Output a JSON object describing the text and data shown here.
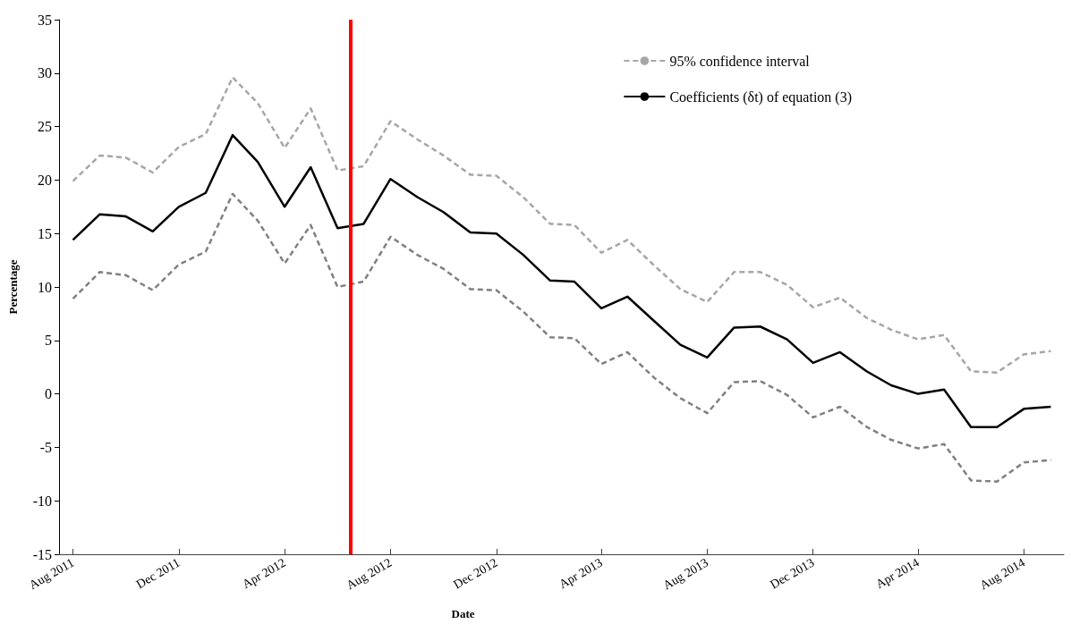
{
  "chart_data": {
    "type": "line",
    "xlabel": "Date",
    "ylabel": "Percentage",
    "x": [
      "2011-08",
      "2011-09",
      "2011-10",
      "2011-11",
      "2011-12",
      "2012-01",
      "2012-02",
      "2012-03",
      "2012-04",
      "2012-05",
      "2012-06",
      "2012-07",
      "2012-08",
      "2012-09",
      "2012-10",
      "2012-11",
      "2012-12",
      "2013-01",
      "2013-02",
      "2013-03",
      "2013-04",
      "2013-05",
      "2013-06",
      "2013-07",
      "2013-08",
      "2013-09",
      "2013-10",
      "2013-11",
      "2013-12",
      "2014-01",
      "2014-02",
      "2014-03",
      "2014-04",
      "2014-05",
      "2014-06",
      "2014-07",
      "2014-08",
      "2014-09"
    ],
    "series": [
      {
        "name": "95% confidence interval",
        "color": "#a6a6a6",
        "line_style": "dashed",
        "values": [
          19.9,
          22.3,
          22.1,
          20.7,
          23.1,
          24.3,
          29.6,
          27.2,
          23.0,
          26.7,
          20.9,
          21.3,
          25.5,
          23.8,
          22.3,
          20.5,
          20.4,
          18.4,
          15.9,
          15.8,
          13.2,
          14.4,
          12.0,
          9.8,
          8.6,
          11.4,
          11.4,
          10.2,
          8.1,
          9.0,
          7.1,
          6.0,
          5.1,
          5.5,
          2.1,
          2.0,
          3.7,
          4.0
        ]
      },
      {
        "name": "Coefficients (δt) of equation (3)",
        "color": "#000000",
        "line_style": "solid",
        "values": [
          14.4,
          16.8,
          16.6,
          15.2,
          17.5,
          18.8,
          24.2,
          21.7,
          17.5,
          21.2,
          15.5,
          15.9,
          20.1,
          18.4,
          17.0,
          15.1,
          15.0,
          13.0,
          10.6,
          10.5,
          8.0,
          9.1,
          6.8,
          4.6,
          3.4,
          6.2,
          6.3,
          5.1,
          2.9,
          3.9,
          2.1,
          0.8,
          0.0,
          0.4,
          -3.1,
          -3.1,
          -1.4,
          -1.2
        ]
      },
      {
        "color": "#808080",
        "line_style": "dashed",
        "values": [
          8.9,
          11.4,
          11.1,
          9.7,
          12.1,
          13.3,
          18.7,
          16.2,
          12.2,
          15.8,
          10.0,
          10.5,
          14.7,
          13.0,
          11.7,
          9.8,
          9.7,
          7.7,
          5.3,
          5.2,
          2.8,
          3.9,
          1.5,
          -0.4,
          -1.8,
          1.1,
          1.2,
          -0.1,
          -2.2,
          -1.2,
          -3.1,
          -4.3,
          -5.1,
          -4.7,
          -8.1,
          -8.2,
          -6.4,
          -6.2
        ]
      }
    ],
    "xlim": [
      "2011-07-16",
      "2014-09-16"
    ],
    "xticks": [
      {
        "value": "2011-08",
        "label": "Aug 2011"
      },
      {
        "value": "2011-12",
        "label": "Dec 2011"
      },
      {
        "value": "2012-04",
        "label": "Apr 2012"
      },
      {
        "value": "2012-08",
        "label": "Aug 2012"
      },
      {
        "value": "2012-12",
        "label": "Dec 2012"
      },
      {
        "value": "2013-04",
        "label": "Apr 2013"
      },
      {
        "value": "2013-08",
        "label": "Aug 2013"
      },
      {
        "value": "2013-12",
        "label": "Dec 2013"
      },
      {
        "value": "2014-04",
        "label": "Apr 2014"
      },
      {
        "value": "2014-08",
        "label": "Aug 2014"
      }
    ],
    "ylim": [
      -15,
      35
    ],
    "yticks": [
      -15,
      -10,
      -5,
      0,
      5,
      10,
      15,
      20,
      25,
      30,
      35
    ],
    "ref_lines": [
      {
        "axis": "x",
        "value": "2012-06-16",
        "color": "#ff0000"
      }
    ],
    "legend": "top right",
    "grid": false,
    "marker": "none"
  }
}
